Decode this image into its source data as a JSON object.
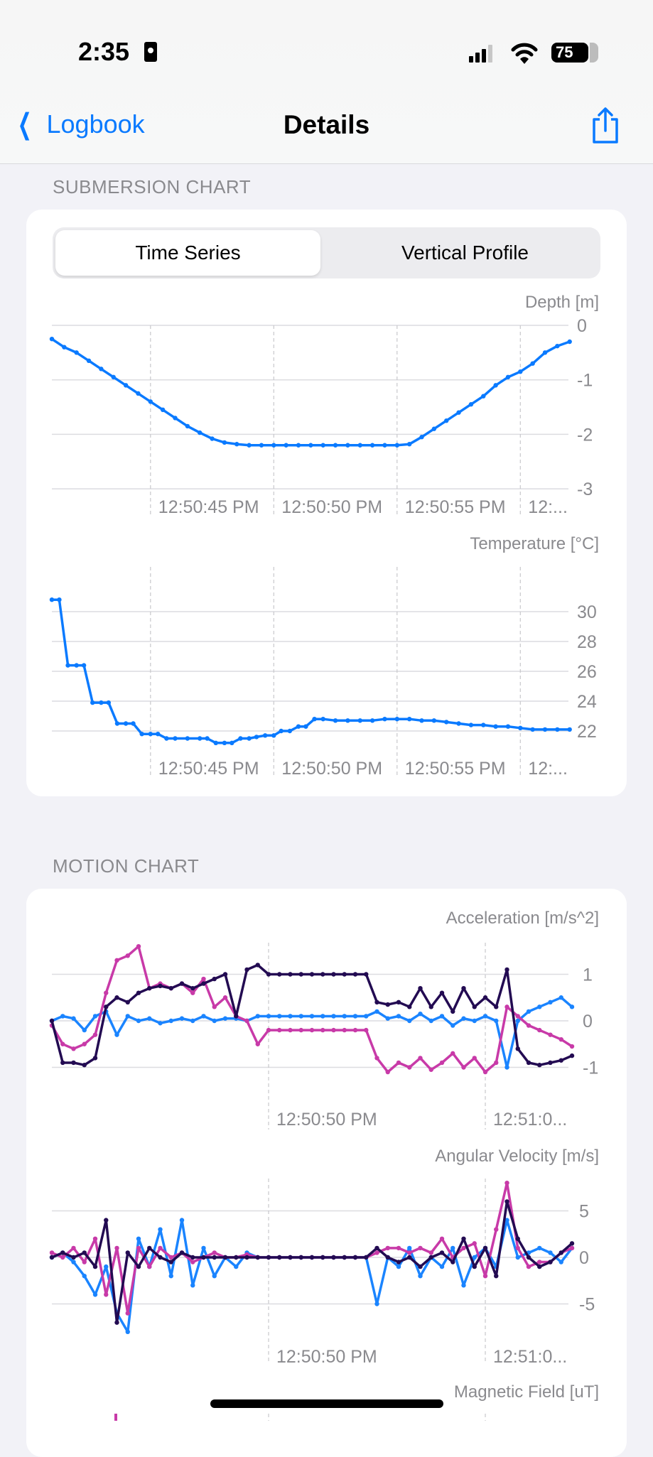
{
  "status_bar": {
    "time": "2:35",
    "battery": "75"
  },
  "nav": {
    "back_label": "Logbook",
    "title": "Details"
  },
  "submersion": {
    "section_title": "SUBMERSION CHART",
    "segments": [
      "Time Series",
      "Vertical Profile"
    ],
    "selected_segment": "Time Series"
  },
  "motion": {
    "section_title": "MOTION CHART"
  },
  "colors": {
    "accent": "#0a7aff",
    "series_x": "#1a84ff",
    "series_y": "#c83aa8",
    "series_z": "#230b52",
    "grid": "#d8d8dc"
  },
  "chart_data": [
    {
      "id": "depth",
      "type": "line",
      "ylabel": "Depth [m]",
      "ylim": [
        -3,
        0
      ],
      "yticks": [
        0,
        -1,
        -2,
        -3
      ],
      "ytick_labels": [
        "0",
        "-1",
        "-2",
        "-3"
      ],
      "xticks_s": [
        45,
        50,
        55,
        60
      ],
      "xtick_labels": [
        "12:50:45 PM",
        "12:50:50 PM",
        "12:50:55 PM",
        "12:..."
      ],
      "x_unit": "seconds after 12:50:40 PM",
      "series": [
        {
          "name": "Depth",
          "color": "#0a7aff",
          "t0": 41,
          "dt": 0.5,
          "values": [
            -0.25,
            -0.4,
            -0.5,
            -0.65,
            -0.8,
            -0.95,
            -1.1,
            -1.25,
            -1.4,
            -1.55,
            -1.7,
            -1.85,
            -1.97,
            -2.08,
            -2.15,
            -2.18,
            -2.2,
            -2.2,
            -2.2,
            -2.2,
            -2.2,
            -2.2,
            -2.2,
            -2.2,
            -2.2,
            -2.2,
            -2.2,
            -2.2,
            -2.2,
            -2.18,
            -2.05,
            -1.9,
            -1.75,
            -1.6,
            -1.45,
            -1.3,
            -1.1,
            -0.95,
            -0.85,
            -0.7,
            -0.5,
            -0.38,
            -0.3
          ]
        }
      ]
    },
    {
      "id": "temperature",
      "type": "line",
      "ylabel": "Temperature [°C]",
      "ylim": [
        20.5,
        31
      ],
      "yticks": [
        30,
        28,
        26,
        24,
        22
      ],
      "ytick_labels": [
        "30",
        "28",
        "26",
        "24",
        "22"
      ],
      "xticks_s": [
        45,
        50,
        55,
        60
      ],
      "xtick_labels": [
        "12:50:45 PM",
        "12:50:50 PM",
        "12:50:55 PM",
        "12:..."
      ],
      "x_unit": "seconds after 12:50:40 PM",
      "series": [
        {
          "name": "Temperature",
          "color": "#0a7aff",
          "points": [
            [
              41.0,
              30.8
            ],
            [
              41.3,
              30.8
            ],
            [
              41.65,
              26.4
            ],
            [
              42.0,
              26.4
            ],
            [
              42.3,
              26.4
            ],
            [
              42.65,
              23.9
            ],
            [
              43.0,
              23.9
            ],
            [
              43.3,
              23.9
            ],
            [
              43.65,
              22.5
            ],
            [
              44.0,
              22.5
            ],
            [
              44.3,
              22.5
            ],
            [
              44.65,
              21.8
            ],
            [
              45.0,
              21.8
            ],
            [
              45.3,
              21.8
            ],
            [
              45.65,
              21.5
            ],
            [
              46,
              21.5
            ],
            [
              46.5,
              21.5
            ],
            [
              47,
              21.5
            ],
            [
              47.3,
              21.5
            ],
            [
              47.65,
              21.2
            ],
            [
              48,
              21.2
            ],
            [
              48.3,
              21.2
            ],
            [
              48.65,
              21.5
            ],
            [
              49,
              21.5
            ],
            [
              49.3,
              21.6
            ],
            [
              49.65,
              21.7
            ],
            [
              50,
              21.7
            ],
            [
              50.3,
              22
            ],
            [
              50.65,
              22
            ],
            [
              51,
              22.3
            ],
            [
              51.3,
              22.3
            ],
            [
              51.65,
              22.8
            ],
            [
              52,
              22.8
            ],
            [
              52.5,
              22.7
            ],
            [
              53,
              22.7
            ],
            [
              53.5,
              22.7
            ],
            [
              54,
              22.7
            ],
            [
              54.5,
              22.8
            ],
            [
              55,
              22.8
            ],
            [
              55.5,
              22.8
            ],
            [
              56,
              22.7
            ],
            [
              56.5,
              22.7
            ],
            [
              57,
              22.6
            ],
            [
              57.5,
              22.5
            ],
            [
              58,
              22.4
            ],
            [
              58.5,
              22.4
            ],
            [
              59,
              22.3
            ],
            [
              59.5,
              22.3
            ],
            [
              60,
              22.2
            ],
            [
              60.5,
              22.1
            ],
            [
              61,
              22.1
            ],
            [
              61.5,
              22.1
            ],
            [
              62,
              22.1
            ]
          ]
        }
      ]
    },
    {
      "id": "acceleration",
      "type": "line",
      "ylabel": "Acceleration [m/s^2]",
      "ylim": [
        -1.6,
        1.6
      ],
      "yticks": [
        1,
        0,
        -1
      ],
      "ytick_labels": [
        "1",
        "0",
        "-1"
      ],
      "xticks_s": [
        50,
        60
      ],
      "xtick_labels": [
        "12:50:50 PM",
        "12:51:0..."
      ],
      "x_unit": "seconds after 12:50:40 PM",
      "series": [
        {
          "name": "x",
          "color": "#1a84ff",
          "t0": 40,
          "dt": 0.5,
          "values": [
            0,
            0.1,
            0.05,
            -0.2,
            0.1,
            0.2,
            -0.3,
            0.1,
            0,
            0.05,
            -0.05,
            0,
            0.05,
            0,
            0.1,
            0,
            0.05,
            0.05,
            0,
            0.1,
            0.1,
            0.1,
            0.1,
            0.1,
            0.1,
            0.1,
            0.1,
            0.1,
            0.1,
            0.1,
            0.2,
            0.05,
            0.1,
            0,
            0.15,
            0,
            0.1,
            -0.1,
            0.05,
            0,
            0.1,
            0,
            -1.0,
            0,
            0.2,
            0.3,
            0.4,
            0.5,
            0.3
          ]
        },
        {
          "name": "y",
          "color": "#c83aa8",
          "t0": 40,
          "dt": 0.5,
          "values": [
            -0.1,
            -0.5,
            -0.6,
            -0.5,
            -0.3,
            0.6,
            1.3,
            1.4,
            1.6,
            0.7,
            0.8,
            0.7,
            0.8,
            0.6,
            0.9,
            0.3,
            0.5,
            0.1,
            0,
            -0.5,
            -0.2,
            -0.2,
            -0.2,
            -0.2,
            -0.2,
            -0.2,
            -0.2,
            -0.2,
            -0.2,
            -0.2,
            -0.8,
            -1.1,
            -0.9,
            -1.0,
            -0.8,
            -1.05,
            -0.9,
            -0.7,
            -1.0,
            -0.8,
            -1.1,
            -0.9,
            0.3,
            0.1,
            -0.1,
            -0.2,
            -0.3,
            -0.4,
            -0.55
          ]
        },
        {
          "name": "z",
          "color": "#230b52",
          "t0": 40,
          "dt": 0.5,
          "values": [
            0,
            -0.9,
            -0.9,
            -0.95,
            -0.8,
            0.3,
            0.5,
            0.4,
            0.6,
            0.7,
            0.75,
            0.7,
            0.8,
            0.7,
            0.8,
            0.9,
            1.0,
            0.1,
            1.1,
            1.2,
            1.0,
            1.0,
            1.0,
            1.0,
            1.0,
            1.0,
            1.0,
            1.0,
            1.0,
            1.0,
            0.4,
            0.35,
            0.4,
            0.3,
            0.7,
            0.3,
            0.6,
            0.2,
            0.7,
            0.3,
            0.5,
            0.3,
            1.1,
            -0.6,
            -0.9,
            -0.95,
            -0.9,
            -0.85,
            -0.75
          ]
        }
      ]
    },
    {
      "id": "angular_velocity",
      "type": "line",
      "ylabel": "Angular Velocity [m/s]",
      "ylim": [
        -9,
        9
      ],
      "yticks": [
        5,
        0,
        -5
      ],
      "ytick_labels": [
        "5",
        "0",
        "-5"
      ],
      "xticks_s": [
        50,
        60
      ],
      "xtick_labels": [
        "12:50:50 PM",
        "12:51:0..."
      ],
      "x_unit": "seconds after 12:50:40 PM",
      "series": [
        {
          "name": "x",
          "color": "#1a84ff",
          "t0": 40,
          "dt": 0.5,
          "values": [
            0,
            0.5,
            -0.5,
            -2,
            -4,
            -1,
            -6,
            -8,
            2,
            -1,
            3,
            -2,
            4,
            -3,
            1,
            -2,
            0,
            -1,
            0.5,
            0,
            0,
            0,
            0,
            0,
            0,
            0,
            0,
            0,
            0,
            0,
            -5,
            0,
            -1,
            1,
            -2,
            0,
            -1,
            1,
            -3,
            0,
            1,
            -1,
            4,
            0,
            0.5,
            1,
            0.5,
            -0.5,
            1
          ]
        },
        {
          "name": "y",
          "color": "#c83aa8",
          "t0": 40,
          "dt": 0.5,
          "values": [
            0.5,
            0,
            1,
            -0.5,
            2,
            -4,
            1,
            -6,
            1,
            -1,
            1,
            0,
            0.5,
            -0.5,
            0,
            0.5,
            0,
            0,
            0.3,
            0,
            0,
            0,
            0,
            0,
            0,
            0,
            0,
            0,
            0,
            0,
            0.5,
            1,
            1,
            0.5,
            1,
            0.5,
            2,
            0,
            1,
            1.5,
            -2,
            3,
            8,
            1,
            -1,
            -0.5,
            -0.5,
            0.5,
            1
          ]
        },
        {
          "name": "z",
          "color": "#230b52",
          "t0": 40,
          "dt": 0.5,
          "values": [
            0,
            0.5,
            0,
            0.5,
            -1,
            4,
            -7,
            0.5,
            -1,
            1,
            0,
            -0.5,
            0.5,
            0,
            0,
            0,
            0,
            0,
            0,
            0,
            0,
            0,
            0,
            0,
            0,
            0,
            0,
            0,
            0,
            0,
            1,
            0,
            -0.5,
            0,
            -1,
            0,
            0.5,
            -0.5,
            2,
            -1,
            1,
            -2,
            6,
            2,
            0,
            -1,
            -0.5,
            0.5,
            1.5
          ]
        }
      ]
    },
    {
      "id": "magnetic_field",
      "type": "line",
      "ylabel": "Magnetic Field [uT]",
      "xticks_s": [
        50,
        60
      ],
      "xtick_labels": [],
      "series": []
    }
  ]
}
